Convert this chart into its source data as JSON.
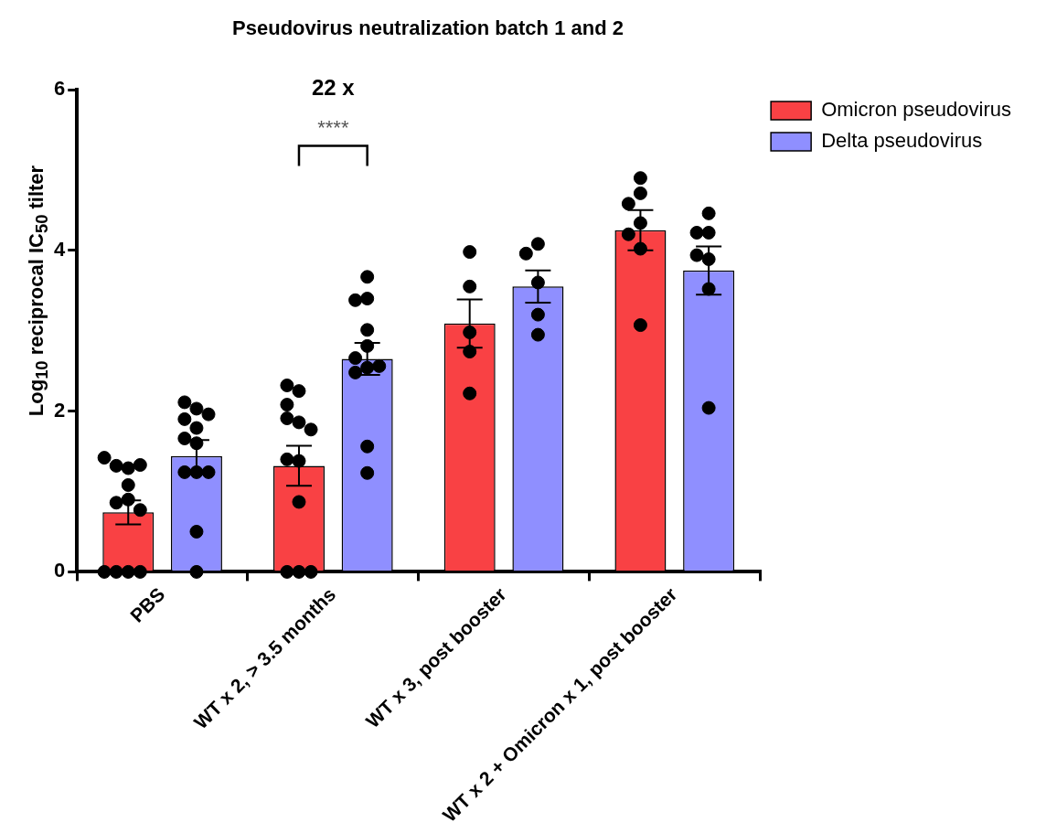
{
  "chart_data": {
    "type": "bar",
    "title": "Pseudovirus neutralization batch 1 and 2",
    "ylabel": "Log$_{10}$ reciprocal IC$_{50}$ tilter",
    "categories": [
      "PBS",
      "WT x 2, > 3.5 months",
      "WT x 3, post booster",
      "WT x 2 + Omicron x 1, post booster"
    ],
    "series": [
      {
        "name": "Omicron pseudovirus",
        "color": "#f94144",
        "values": [
          0.74,
          1.32,
          3.09,
          4.25
        ],
        "errors": [
          0.15,
          0.25,
          0.3,
          0.25
        ]
      },
      {
        "name": "Delta pseudovirus",
        "color": "#8f8fff",
        "values": [
          1.44,
          2.65,
          3.55,
          3.75
        ],
        "errors": [
          0.2,
          0.2,
          0.2,
          0.3
        ]
      },
      {
        "type": "scatter",
        "color": "#000000",
        "x": [
          "PBS",
          "PBS",
          "PBS",
          "PBS",
          "PBS",
          "PBS",
          "PBS",
          "PBS",
          "PBS",
          "PBS",
          "PBS",
          "PBS",
          "WT x 2, > 3.5 months",
          "WT x 2, > 3.5 months",
          "WT x 2, > 3.5 months",
          "WT x 2, > 3.5 months",
          "WT x 2, > 3.5 months",
          "WT x 2, > 3.5 months",
          "WT x 2, > 3.5 months",
          "WT x 2, > 3.5 months",
          "WT x 2, > 3.5 months",
          "WT x 2, > 3.5 months",
          "WT x 2, > 3.5 months",
          "WT x 2, > 3.5 months",
          "WT x 3, post booster",
          "WT x 3, post booster",
          "WT x 3, post booster",
          "WT x 3, post booster",
          "WT x 3, post booster",
          "WT x 2 + Omicron x 1, post booster",
          "WT x 2 + Omicron x 1, post booster",
          "WT x 2 + Omicron x 1, post booster",
          "WT x 2 + Omicron x 1, post booster",
          "WT x 2 + Omicron x 1, post booster",
          "WT x 2 + Omicron x 1, post booster",
          "WT x 2 + Omicron x 1, post booster"
        ],
        "values": [
          1.29,
          1.32,
          1.33,
          1.42,
          1.08,
          0.9,
          0.86,
          0.77,
          0,
          0,
          0,
          0,
          2.25,
          2.32,
          2.08,
          1.86,
          1.91,
          1.77,
          1.38,
          1.4,
          0.87,
          0,
          0,
          0,
          3.98,
          3.55,
          2.98,
          2.74,
          2.22,
          4.9,
          4.71,
          4.58,
          4.34,
          4.2,
          4.02,
          3.07
        ]
      },
      {
        "type": "scatter",
        "color": "#000000",
        "x": [
          "PBS",
          "PBS",
          "PBS",
          "PBS",
          "PBS",
          "PBS",
          "PBS",
          "PBS",
          "PBS",
          "PBS",
          "PBS",
          "PBS",
          "WT x 2, > 3.5 months",
          "WT x 2, > 3.5 months",
          "WT x 2, > 3.5 months",
          "WT x 2, > 3.5 months",
          "WT x 2, > 3.5 months",
          "WT x 2, > 3.5 months",
          "WT x 2, > 3.5 months",
          "WT x 2, > 3.5 months",
          "WT x 2, > 3.5 months",
          "WT x 2, > 3.5 months",
          "WT x 2, > 3.5 months",
          "WT x 3, post booster",
          "WT x 3, post booster",
          "WT x 3, post booster",
          "WT x 3, post booster",
          "WT x 3, post booster",
          "WT x 2 + Omicron x 1, post booster",
          "WT x 2 + Omicron x 1, post booster",
          "WT x 2 + Omicron x 1, post booster",
          "WT x 2 + Omicron x 1, post booster",
          "WT x 2 + Omicron x 1, post booster",
          "WT x 2 + Omicron x 1, post booster",
          "WT x 2 + Omicron x 1, post booster"
        ],
        "values": [
          2.03,
          2.11,
          1.96,
          1.79,
          1.9,
          1.66,
          1.6,
          1.24,
          1.24,
          1.24,
          0.5,
          0,
          3.67,
          3.4,
          3.38,
          3.01,
          2.81,
          2.66,
          2.54,
          2.48,
          2.56,
          1.56,
          1.23,
          4.08,
          3.96,
          3.6,
          3.2,
          2.95,
          4.46,
          4.22,
          4.22,
          3.89,
          3.94,
          3.52,
          2.04
        ]
      }
    ],
    "annotations": [
      "22 x",
      "****"
    ],
    "ylim": [
      0,
      6
    ],
    "yticks": [
      0,
      2,
      4,
      6
    ],
    "grid": false,
    "legend": "top right",
    "marker": "circle"
  }
}
